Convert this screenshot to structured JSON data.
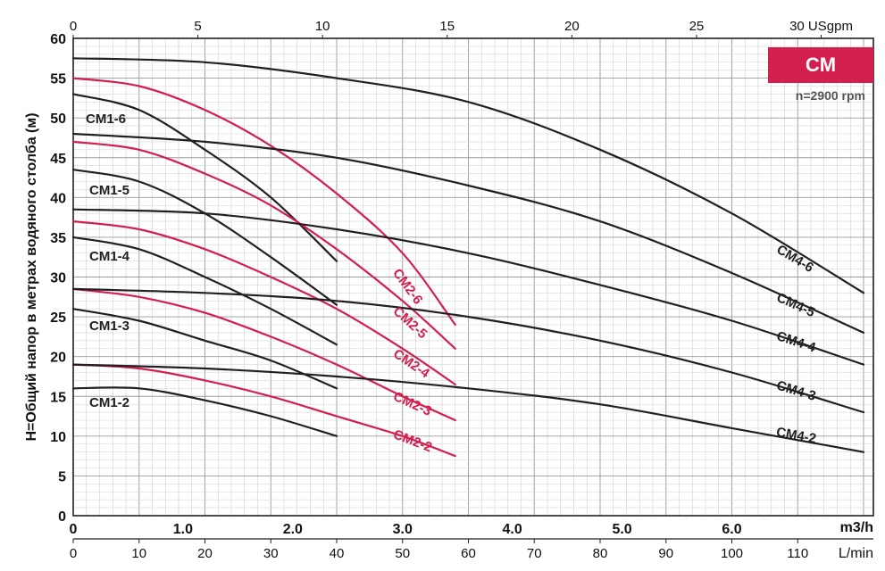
{
  "chart_data": {
    "type": "line",
    "ylabel": "H=Общий напор в метрах водяного столба (м)",
    "ylim": [
      0,
      60
    ],
    "y_ticks": [
      "0",
      "5",
      "10",
      "15",
      "20",
      "25",
      "30",
      "35",
      "40",
      "45",
      "50",
      "55",
      "60"
    ],
    "x_lmin_range": [
      0,
      120
    ],
    "x_lmin_ticks": [
      "0",
      "10",
      "20",
      "30",
      "40",
      "50",
      "60",
      "70",
      "80",
      "90",
      "100",
      "110"
    ],
    "x_lmin_unit": "L/min",
    "x_m3h_ticks": [
      "0",
      "1.0",
      "2.0",
      "3.0",
      "4.0",
      "5.0",
      "6.0"
    ],
    "x_m3h_unit": "m3/h",
    "x_usgpm_ticks": [
      "0",
      "5",
      "10",
      "15",
      "20",
      "25",
      "30"
    ],
    "x_usgpm_unit": "USgpm",
    "grid": true,
    "badge": {
      "label": "CM",
      "color": "#d31f4e"
    },
    "speed_note": "n=2900 rpm",
    "colors": {
      "cm1": "#231f20",
      "cm2": "#d31f4e",
      "cm4": "#231f20"
    },
    "series": [
      {
        "name": "CM1-2",
        "group": "cm1",
        "x": [
          0,
          10,
          20,
          30,
          40
        ],
        "y": [
          16,
          16,
          14.5,
          12.5,
          10
        ]
      },
      {
        "name": "CM1-3",
        "group": "cm1",
        "x": [
          0,
          10,
          20,
          30,
          40
        ],
        "y": [
          26,
          24.5,
          22,
          19.5,
          16
        ]
      },
      {
        "name": "CM1-4",
        "group": "cm1",
        "x": [
          0,
          10,
          20,
          30,
          40
        ],
        "y": [
          35,
          33.5,
          30,
          26,
          21.5
        ]
      },
      {
        "name": "CM1-5",
        "group": "cm1",
        "x": [
          0,
          10,
          20,
          30,
          40
        ],
        "y": [
          43.5,
          42,
          38,
          32.5,
          26.5
        ]
      },
      {
        "name": "CM1-6",
        "group": "cm1",
        "x": [
          0,
          10,
          20,
          30,
          40
        ],
        "y": [
          53,
          51,
          46,
          40,
          32
        ]
      },
      {
        "name": "CM2-2",
        "group": "cm2",
        "x": [
          0,
          10,
          20,
          30,
          40,
          50,
          58
        ],
        "y": [
          19,
          18.5,
          17,
          15,
          12.5,
          10,
          7.5
        ]
      },
      {
        "name": "CM2-3",
        "group": "cm2",
        "x": [
          0,
          10,
          20,
          30,
          40,
          50,
          58
        ],
        "y": [
          28.5,
          27.5,
          25.5,
          22.5,
          19,
          15,
          12
        ]
      },
      {
        "name": "CM2-4",
        "group": "cm2",
        "x": [
          0,
          10,
          20,
          30,
          40,
          50,
          58
        ],
        "y": [
          37,
          36,
          33.5,
          30,
          26,
          21,
          16.5
        ]
      },
      {
        "name": "CM2-5",
        "group": "cm2",
        "x": [
          0,
          10,
          20,
          30,
          40,
          50,
          58
        ],
        "y": [
          47,
          46,
          43,
          39,
          33.5,
          27,
          21
        ]
      },
      {
        "name": "CM2-6",
        "group": "cm2",
        "x": [
          0,
          10,
          20,
          30,
          40,
          50,
          58
        ],
        "y": [
          55,
          54,
          51,
          46.5,
          40.5,
          33,
          24
        ]
      },
      {
        "name": "CM4-2",
        "group": "cm4",
        "x": [
          0,
          20,
          40,
          60,
          80,
          100,
          120
        ],
        "y": [
          19,
          18.5,
          17.5,
          16,
          14,
          11,
          8
        ]
      },
      {
        "name": "CM4-3",
        "group": "cm4",
        "x": [
          0,
          20,
          40,
          60,
          80,
          100,
          120
        ],
        "y": [
          28.5,
          28,
          27,
          25,
          22,
          18,
          13
        ]
      },
      {
        "name": "CM4-4",
        "group": "cm4",
        "x": [
          0,
          20,
          40,
          60,
          80,
          100,
          120
        ],
        "y": [
          38.5,
          38,
          36,
          33,
          29,
          24.5,
          19
        ]
      },
      {
        "name": "CM4-5",
        "group": "cm4",
        "x": [
          0,
          20,
          40,
          60,
          80,
          100,
          120
        ],
        "y": [
          48,
          47,
          45,
          41.5,
          37,
          30.5,
          23
        ]
      },
      {
        "name": "CM4-6",
        "group": "cm4",
        "x": [
          0,
          20,
          40,
          60,
          80,
          100,
          120
        ],
        "y": [
          57.5,
          57,
          55,
          52,
          46,
          38,
          28
        ]
      }
    ]
  }
}
